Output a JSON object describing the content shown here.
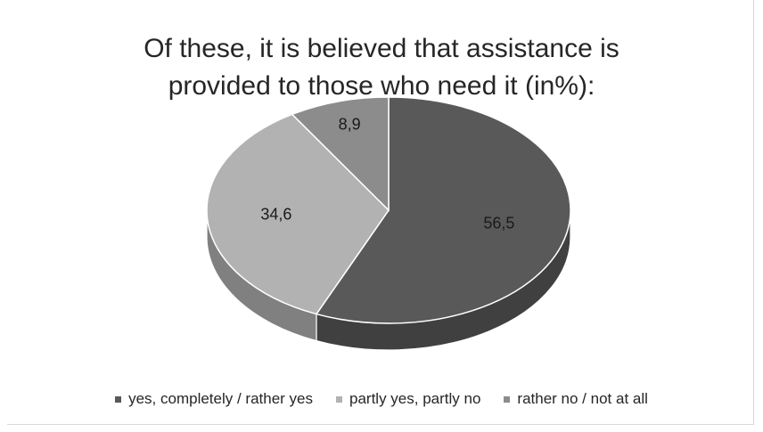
{
  "chart_data": {
    "type": "pie",
    "title_lines": [
      "Of these, it is believed that assistance is",
      "provided to those who need it (in%):"
    ],
    "slices": [
      {
        "name": "yes, completely / rather yes",
        "value": 56.5,
        "label": "56,5",
        "color": "#595959"
      },
      {
        "name": "partly yes, partly no",
        "value": 34.6,
        "label": "34,6",
        "color": "#b2b2b2"
      },
      {
        "name": "rather no / not at all",
        "value": 8.9,
        "label": "8,9",
        "color": "#8c8c8c"
      }
    ],
    "legend_position": "bottom",
    "style": "3d"
  }
}
